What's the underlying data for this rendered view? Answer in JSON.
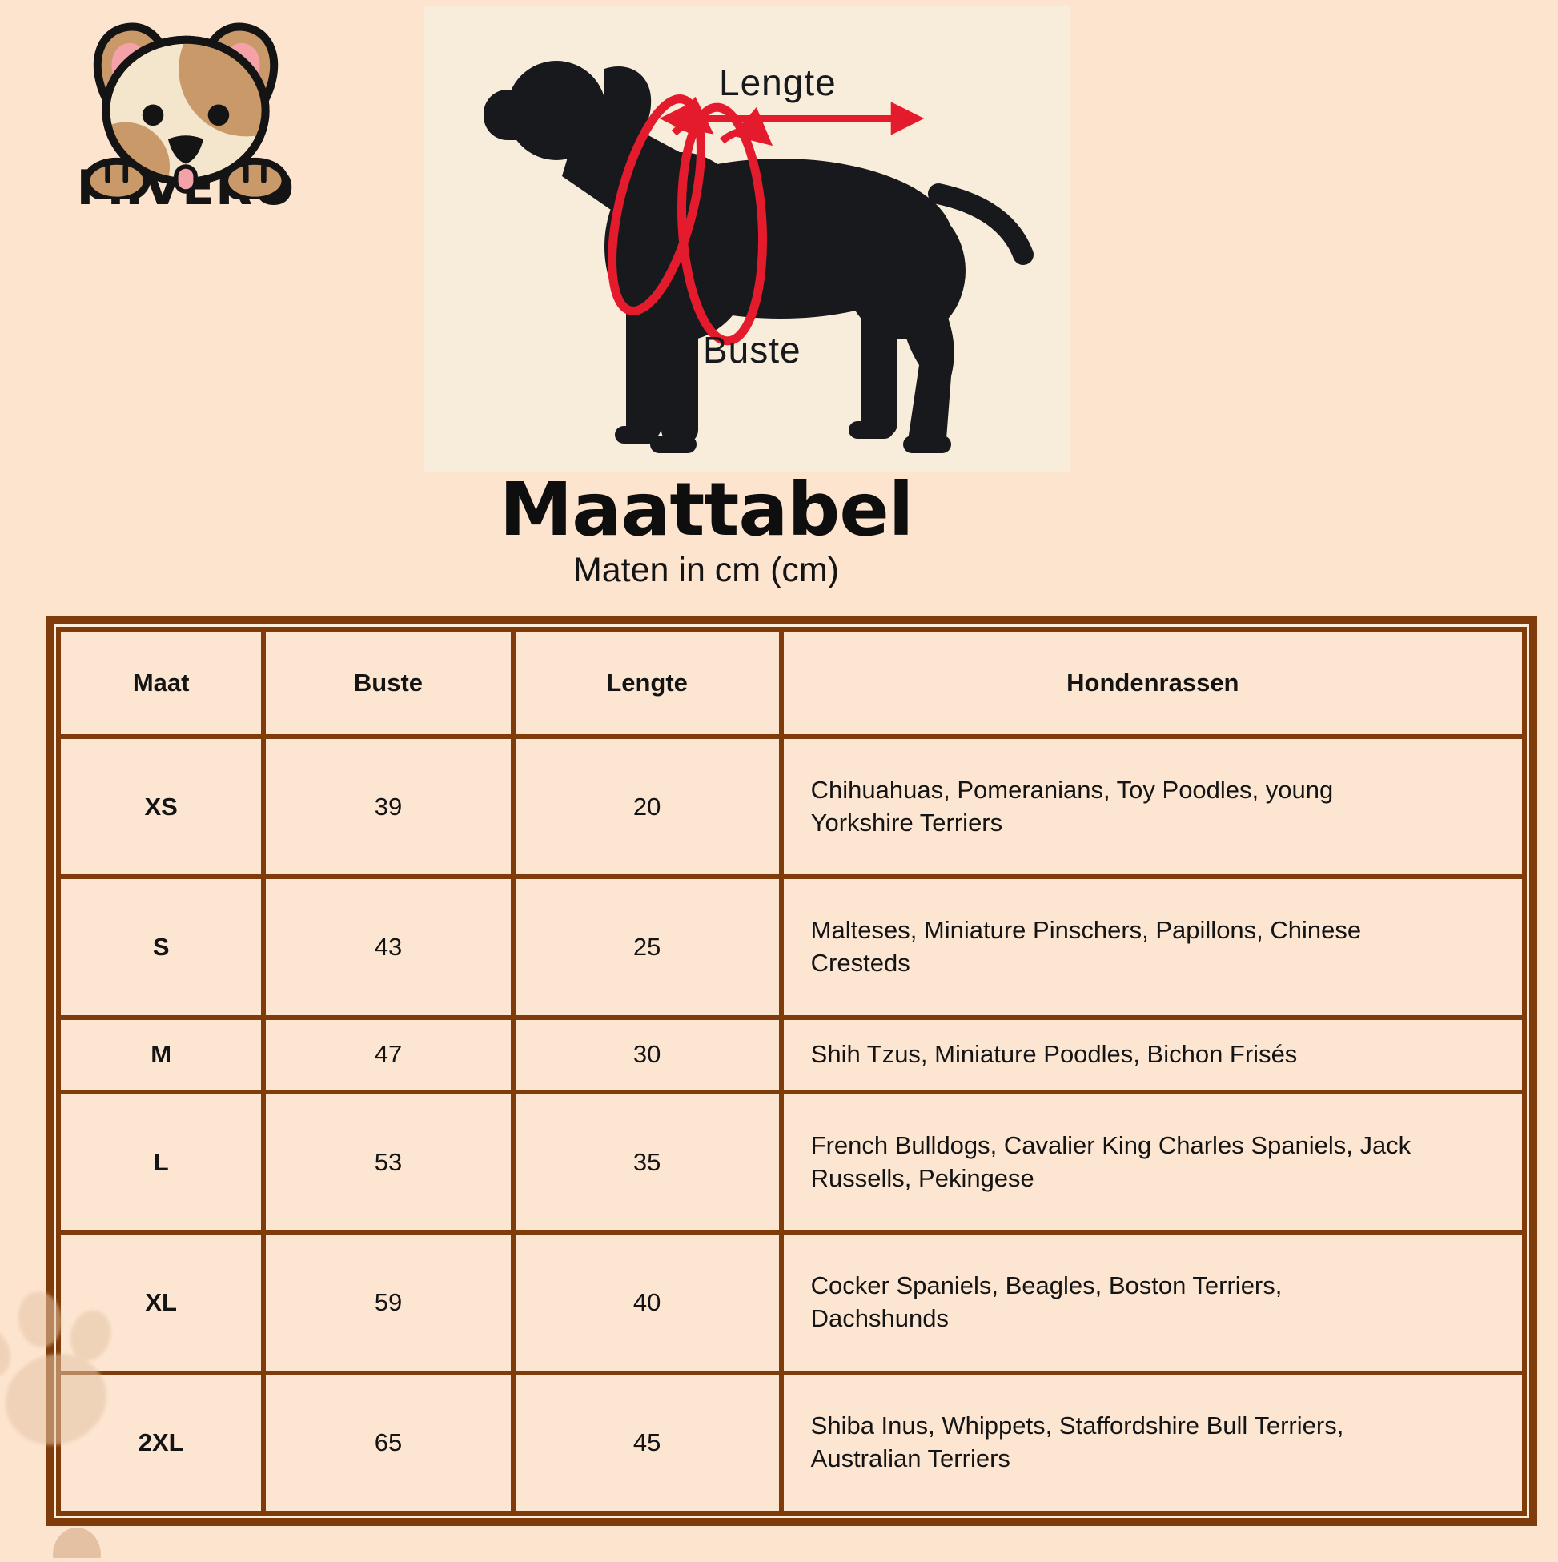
{
  "colors": {
    "page-bg": "#fde4cf",
    "panel-bg": "#f8ecda",
    "cell-bg": "#fce6d2",
    "border-brown": "#7f3c0a",
    "arrow-red": "#e41b2c",
    "dog-black": "#17191d",
    "logo-tan": "#c9996a",
    "logo-cream": "#f3e6cd",
    "logo-pink": "#f4a2a8",
    "paw-tan": "#e5c4a4",
    "text": "#141414"
  },
  "icons": {
    "logo_dog": "puppy-head-with-paws",
    "diagram_dog": "dog-silhouette-side-view",
    "length_arrow": "red-double-arrow-horizontal",
    "chest_loops": "red-girth-measurement-loops",
    "watermark": "paw-print"
  },
  "logo": {
    "brand": "MIVERO"
  },
  "diagram": {
    "length_label": "Lengte",
    "chest_label": "Buste"
  },
  "header": {
    "title": "Maattabel",
    "subtitle": "Maten in cm (cm)"
  },
  "table": {
    "headers": [
      "Maat",
      "Buste",
      "Lengte",
      "Hondenrassen"
    ],
    "columns": [
      "maat",
      "buste",
      "lengte",
      "rassen"
    ],
    "rows": [
      {
        "maat": "XS",
        "buste": "39",
        "lengte": "20",
        "rassen": [
          "Chihuahuas, Pomeranians, Toy Poodles,  young",
          "Yorkshire Terriers"
        ]
      },
      {
        "maat": "S",
        "buste": "43",
        "lengte": "25",
        "rassen": [
          "Malteses, Miniature Pinschers, Papillons, Chinese",
          "Cresteds"
        ]
      },
      {
        "maat": "M",
        "buste": "47",
        "lengte": "30",
        "rassen": [
          "Shih Tzus, Miniature Poodles, Bichon Frisés"
        ]
      },
      {
        "maat": "L",
        "buste": "53",
        "lengte": "35",
        "rassen": [
          "French Bulldogs, Cavalier King Charles Spaniels, Jack",
          "Russells, Pekingese"
        ]
      },
      {
        "maat": "XL",
        "buste": "59",
        "lengte": "40",
        "rassen": [
          "Cocker Spaniels, Beagles, Boston Terriers,",
          "Dachshunds"
        ]
      },
      {
        "maat": "2XL",
        "buste": "65",
        "lengte": "45",
        "rassen": [
          "Shiba Inus, Whippets, Staffordshire Bull Terriers,",
          "Australian Terriers"
        ]
      }
    ]
  }
}
